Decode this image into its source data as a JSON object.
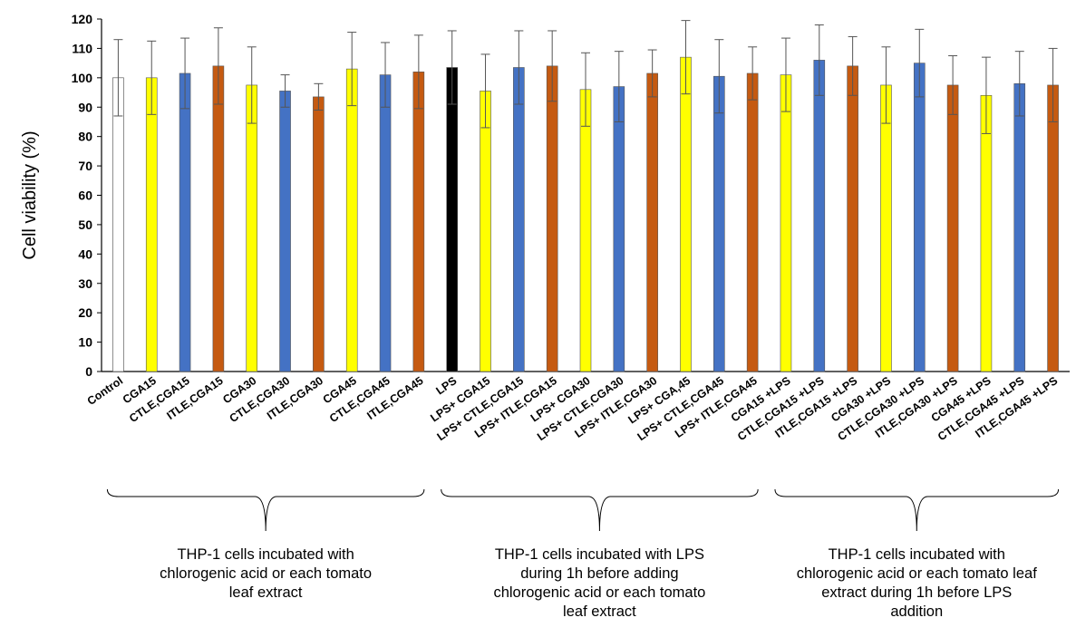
{
  "chart_data": {
    "type": "bar",
    "ylabel": "Cell viability (%)",
    "xlabel": "",
    "title": "",
    "ylim": [
      0,
      120
    ],
    "yticks": [
      0,
      10,
      20,
      30,
      40,
      50,
      60,
      70,
      80,
      90,
      100,
      110,
      120
    ],
    "grid": false,
    "legend": "none",
    "categories": [
      "Control",
      "CGA15",
      "CTLE,CGA15",
      "ITLE,CGA15",
      "CGA30",
      "CTLE,CGA30",
      "ITLE,CGA30",
      "CGA45",
      "CTLE,CGA45",
      "ITLE,CGA45",
      "LPS",
      "LPS+ CGA15",
      "LPS+ CTLE,CGA15",
      "LPS+ ITLE,CGA15",
      "LPS+ CGA30",
      "LPS+ CTLE,CGA30",
      "LPS+ ITLE,CGA30",
      "LPS+ CGA,45",
      "LPS+ CTLE,CGA45",
      "LPS+ ITLE,CGA45",
      "CGA15 +LPS",
      "CTLE,CGA15 +LPS",
      "ITLE,CGA15 +LPS",
      "CGA30 +LPS",
      "CTLE,CGA30 +LPS",
      "ITLE,CGA30 +LPS",
      "CGA45 +LPS",
      "CTLE,CGA45 +LPS",
      "ITLE,CGA45 +LPS"
    ],
    "values": [
      100,
      100,
      101.5,
      104,
      97.5,
      95.5,
      93.5,
      103,
      101,
      102,
      103.5,
      95.5,
      103.5,
      104,
      96,
      97,
      101.5,
      107,
      100.5,
      101.5,
      101,
      106,
      104,
      97.5,
      105,
      97.5,
      94,
      98,
      97.5
    ],
    "errors": [
      13,
      12.5,
      12,
      13,
      13,
      5.5,
      4.5,
      12.5,
      11,
      12.5,
      12.5,
      12.5,
      12.5,
      12,
      12.5,
      12,
      8,
      12.5,
      12.5,
      9,
      12.5,
      12,
      10,
      13,
      11.5,
      10,
      13,
      11,
      12.5
    ],
    "colors": [
      "#ffffff",
      "#ffff00",
      "#4472c4",
      "#c55a11",
      "#ffff00",
      "#4472c4",
      "#c55a11",
      "#ffff00",
      "#4472c4",
      "#c55a11",
      "#000000",
      "#ffff00",
      "#4472c4",
      "#c55a11",
      "#ffff00",
      "#4472c4",
      "#c55a11",
      "#ffff00",
      "#4472c4",
      "#c55a11",
      "#ffff00",
      "#4472c4",
      "#c55a11",
      "#ffff00",
      "#4472c4",
      "#c55a11",
      "#ffff00",
      "#4472c4",
      "#c55a11"
    ],
    "groups": [
      {
        "first": 0,
        "last": 9,
        "lines": [
          "THP-1 cells incubated with",
          "chlorogenic acid or each tomato",
          "leaf extract"
        ]
      },
      {
        "first": 10,
        "last": 19,
        "lines": [
          "THP-1 cells incubated with LPS",
          "during 1h before adding",
          "chlorogenic acid or each tomato",
          "leaf extract"
        ]
      },
      {
        "first": 20,
        "last": 28,
        "lines": [
          "THP-1 cells incubated with",
          "chlorogenic acid or each tomato leaf",
          "extract during 1h before LPS",
          "addition"
        ]
      }
    ]
  }
}
